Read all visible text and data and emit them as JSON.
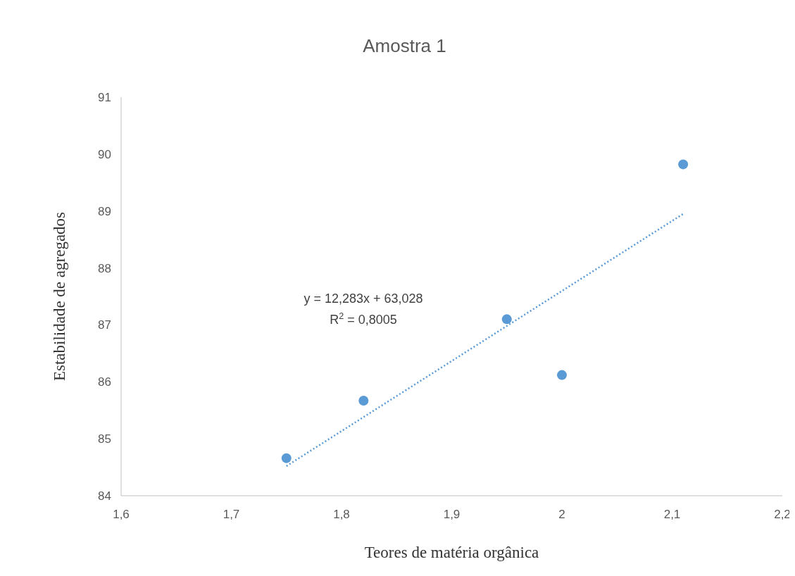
{
  "chart_data": {
    "type": "scatter",
    "title": "Amostra 1",
    "xlabel": "Teores de matéria orgânica",
    "ylabel": "Estabilidade de agregados",
    "grid": false,
    "xlim": [
      1.6,
      2.2
    ],
    "xticks": [
      {
        "value": 1.6,
        "label": "1,6"
      },
      {
        "value": 1.7,
        "label": "1,7"
      },
      {
        "value": 1.8,
        "label": "1,8"
      },
      {
        "value": 1.9,
        "label": "1,9"
      },
      2,
      {
        "value": 2.1,
        "label": "2,1"
      },
      {
        "value": 2.2,
        "label": "2,2"
      }
    ],
    "ylim": [
      84,
      91
    ],
    "yticks": [
      84,
      85,
      86,
      87,
      88,
      89,
      90,
      91
    ],
    "series": [
      {
        "marker": "circle",
        "color": "#5b9bd5",
        "x": [
          1.75,
          1.82,
          1.95,
          2.0,
          2.11
        ],
        "values": [
          84.66,
          85.67,
          87.1,
          86.12,
          89.82
        ]
      },
      {
        "type": "line",
        "color": "#5b9bd5",
        "line_style": "dotted",
        "x": [
          1.75,
          2.11
        ],
        "values": [
          84.52,
          88.95
        ]
      }
    ],
    "annotations": [
      "y = 12,283x + 63,028",
      "R$^{2}$ = 0,8005"
    ]
  }
}
